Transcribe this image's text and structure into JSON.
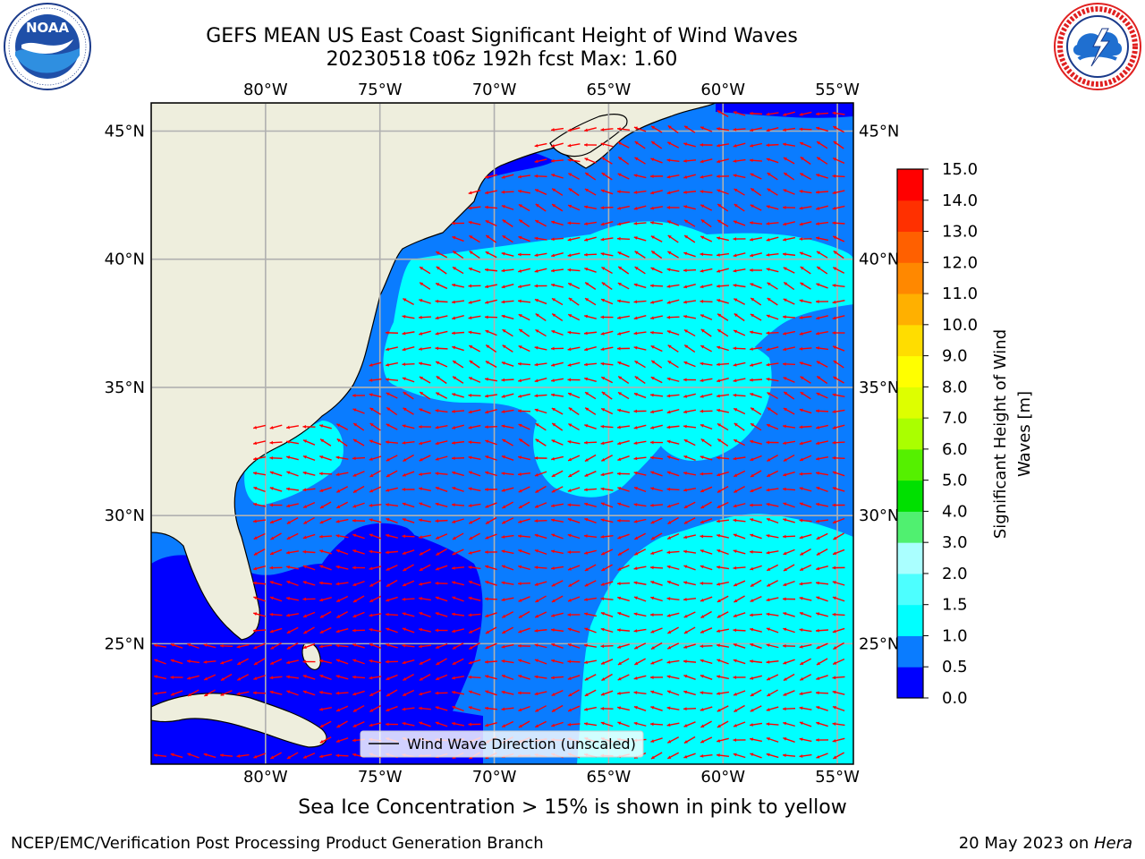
{
  "title": {
    "line1": "GEFS MEAN US East Coast Significant Height of Wind Waves",
    "line2": "20230518 t06z 192h fcst   Max: 1.60"
  },
  "logos": {
    "left": {
      "text": "NOAA",
      "ring_text": "NATIONAL OCEANIC AND ATMOSPHERIC ADMINISTRATION · U.S. DEPARTMENT OF COMMERCE"
    },
    "right": {
      "ring_text": "NATIONAL WEATHER SERVICE"
    }
  },
  "axes": {
    "lon_ticks": [
      "80°W",
      "75°W",
      "70°W",
      "65°W",
      "60°W",
      "55°W"
    ],
    "lat_ticks": [
      "45°N",
      "40°N",
      "35°N",
      "30°N",
      "25°N"
    ],
    "lon_values": [
      -80,
      -75,
      -70,
      -65,
      -60,
      -55
    ],
    "lat_values": [
      45,
      40,
      35,
      30,
      25
    ],
    "lon_range": [
      -85,
      -54.3
    ],
    "lat_range": [
      20.3,
      46.1
    ]
  },
  "legend": {
    "label": "Wind Wave Direction (unscaled)"
  },
  "colorbar": {
    "label_line1": "Significant Height of Wind",
    "label_line2": "Waves [m]",
    "ticks": [
      "0.0",
      "0.5",
      "1.0",
      "1.5",
      "2.0",
      "3.0",
      "4.0",
      "5.0",
      "6.0",
      "7.0",
      "8.0",
      "9.0",
      "10.0",
      "11.0",
      "12.0",
      "13.0",
      "14.0",
      "15.0"
    ],
    "colors": [
      "#0000ff",
      "#0a7cff",
      "#00ffff",
      "#4dffff",
      "#aaffff",
      "#50f070",
      "#00e000",
      "#55f000",
      "#aaff00",
      "#ddff00",
      "#ffff00",
      "#ffdd00",
      "#ffb000",
      "#ff8800",
      "#ff6000",
      "#ff3000",
      "#ff0000"
    ]
  },
  "colors": {
    "land": "#eeeedd",
    "ocean_0_05": "#0000ff",
    "ocean_05_10": "#0a7cff",
    "ocean_10_15": "#00ffff",
    "ocean_15_20": "#4dffff",
    "arrow": "#ff0000",
    "grid": "#b0b0b0"
  },
  "ice_note": "Sea Ice Concentration > 15% is shown in pink to yellow",
  "footer": {
    "left": "NCEP/EMC/Verification Post Processing Product Generation Branch",
    "right_date": "20 May 2023 on ",
    "right_host": "Hera"
  }
}
